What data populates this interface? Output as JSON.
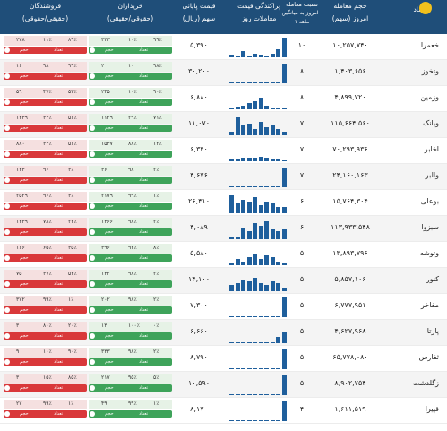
{
  "headers": {
    "symbol": "نماد",
    "volume": "حجم معامله",
    "volume_sub": "امروز (سهم)",
    "ratio": "نسبت معامله",
    "ratio_sub1": "امروز به میانگین",
    "ratio_sub2": "۱ ماهه",
    "spark": "پراکندگی قیمت",
    "spark_sub": "معاملات روز",
    "price": "قیمت پایانی",
    "price_sub": "سهم (ریال)",
    "buyers": "خریداران",
    "buyers_sub": "(حقوقی/حقیقی)",
    "sellers": "فروشندگان",
    "sellers_sub": "(حقیقی/حقوقی)"
  },
  "labels": {
    "legal": "حقوقی",
    "natural": "حقیقی",
    "count": "تعداد",
    "volume": "حجم"
  },
  "colors": {
    "header": "#1f4e79",
    "buy_bar": "#3ea35a",
    "sell_bar": "#d9383a",
    "spark": "#1f5f9c"
  },
  "rows": [
    {
      "symbol": "خعمرا",
      "volume": "۱۰,۲۵۷,۷۴۰",
      "ratio": "۱۰",
      "price": "۵,۳۹۰",
      "bars": [
        0.15,
        0.1,
        0.3,
        0.1,
        0.2,
        0.15,
        0.1,
        0.2,
        0.4,
        1.0
      ],
      "buy": {
        "a": "۳۳۳",
        "b": "۱۰٪",
        "c": "۹۹٪"
      },
      "sell": {
        "a": "۲۷۸",
        "b": "۱۱٪",
        "c": "۸۹٪"
      }
    },
    {
      "symbol": "وتخوز",
      "volume": "۱,۴۰۳,۶۵۶",
      "ratio": "۸",
      "price": "۳۰,۲۰۰",
      "bars": [
        0.1,
        0.0,
        0.0,
        0.0,
        0.0,
        0.0,
        0.0,
        0.0,
        0.0,
        1.0
      ],
      "buy": {
        "a": "۲",
        "b": "۱۰",
        "c": "۹۸٪"
      },
      "sell": {
        "a": "۱۶",
        "b": "۹۸",
        "c": "۹۹٪"
      }
    },
    {
      "symbol": "وزمین",
      "volume": "۴,۸۹۹,۷۲۰",
      "ratio": "۸",
      "price": "۶,۸۸۰",
      "bars": [
        0.1,
        0.15,
        0.2,
        0.3,
        0.4,
        0.6,
        0.2,
        0.1,
        0.1,
        0.05
      ],
      "buy": {
        "a": "۲۴۵",
        "b": "۱۰٪",
        "c": "۹۰٪"
      },
      "sell": {
        "a": "۵۹",
        "b": "۴۷٪",
        "c": "۵۳٪"
      }
    },
    {
      "symbol": "وبانک",
      "volume": "۱۱۵,۶۶۴,۵۶۰",
      "ratio": "۷",
      "price": "۱۱,۰۷۰",
      "bars": [
        0.2,
        0.9,
        0.5,
        0.6,
        0.3,
        0.7,
        0.4,
        0.5,
        0.3,
        0.2
      ],
      "buy": {
        "a": "۱۱۲۹",
        "b": "۲۹٪",
        "c": "۷۱٪"
      },
      "sell": {
        "a": "۱۳۴۹",
        "b": "۴۴٪",
        "c": "۵۶٪"
      }
    },
    {
      "symbol": "اخابر",
      "volume": "۷۰,۲۹۳,۹۳۶",
      "ratio": "۷",
      "price": "۶,۳۴۰",
      "bars": [
        0.1,
        0.15,
        0.2,
        0.2,
        0.2,
        0.25,
        0.2,
        0.15,
        0.1,
        0.05
      ],
      "buy": {
        "a": "۱۵۴۷",
        "b": "۸۸٪",
        "c": "۱۲٪"
      },
      "sell": {
        "a": "۸۸۰",
        "b": "۴۴٪",
        "c": "۵۶٪"
      }
    },
    {
      "symbol": "والبر",
      "volume": "۲۴,۱۶۰,۱۶۳",
      "ratio": "۷",
      "price": "۴,۶۷۶",
      "bars": [
        0.0,
        0.0,
        0.0,
        0.0,
        0.0,
        0.0,
        0.0,
        0.0,
        0.0,
        1.0
      ],
      "buy": {
        "a": "۳۶",
        "b": "۹۸",
        "c": "۲٪"
      },
      "sell": {
        "a": "۱۳۴",
        "b": "۹۶",
        "c": "۴٪"
      }
    },
    {
      "symbol": "بوعلی",
      "volume": "۱۵,۷۶۴,۳۰۴",
      "ratio": "۶",
      "price": "۲۶,۴۱۰",
      "bars": [
        0.9,
        0.5,
        0.7,
        0.6,
        0.8,
        0.4,
        0.6,
        0.5,
        0.3,
        0.3
      ],
      "buy": {
        "a": "۲۱۷۹",
        "b": "۹۹٪",
        "c": "۱٪"
      },
      "sell": {
        "a": "۲۵۲۹",
        "b": "۹۶٪",
        "c": "۴٪"
      }
    },
    {
      "symbol": "سبزوا",
      "volume": "۱۱۳,۹۳۳,۵۴۸",
      "ratio": "۶",
      "price": "۴,۰۸۹",
      "bars": [
        0.1,
        0.1,
        0.6,
        0.4,
        0.8,
        0.7,
        0.9,
        0.5,
        0.4,
        0.5
      ],
      "buy": {
        "a": "۱۳۶۶",
        "b": "۹۸٪",
        "c": "۲٪"
      },
      "sell": {
        "a": "۱۳۳۹",
        "b": "۷۸٪",
        "c": "۲۲٪"
      }
    },
    {
      "symbol": "وتوشه",
      "volume": "۱۳,۸۹۳,۷۹۶",
      "ratio": "۵",
      "price": "۵,۵۸۰",
      "bars": [
        0.1,
        0.3,
        0.2,
        0.4,
        0.6,
        0.3,
        0.5,
        0.4,
        0.2,
        0.1
      ],
      "buy": {
        "a": "۳۹۶",
        "b": "۹۲٪",
        "c": "۸٪"
      },
      "sell": {
        "a": "۱۶۶",
        "b": "۶۵٪",
        "c": "۳۵٪"
      }
    },
    {
      "symbol": "کنور",
      "volume": "۵,۸۵۷,۱۰۶",
      "ratio": "۵",
      "price": "۱۴,۱۰۰",
      "bars": [
        0.3,
        0.4,
        0.6,
        0.5,
        0.7,
        0.4,
        0.3,
        0.5,
        0.4,
        0.2
      ],
      "buy": {
        "a": "۱۳۲",
        "b": "۹۸٪",
        "c": "۲٪"
      },
      "sell": {
        "a": "۷۵",
        "b": "۴۷٪",
        "c": "۵۳٪"
      }
    },
    {
      "symbol": "مفاخر",
      "volume": "۶,۷۷۷,۹۵۱",
      "ratio": "۵",
      "price": "۷,۳۰۰",
      "bars": [
        0.0,
        0.0,
        0.0,
        0.0,
        0.0,
        0.0,
        0.0,
        0.0,
        0.0,
        1.0
      ],
      "buy": {
        "a": "۲۰۲",
        "b": "۹۸٪",
        "c": "۲٪"
      },
      "sell": {
        "a": "۳۷۲",
        "b": "۹۹٪",
        "c": "۱٪"
      }
    },
    {
      "symbol": "پارتا",
      "volume": "۴,۶۲۷,۹۶۸",
      "ratio": "۵",
      "price": "۶,۶۶۰",
      "bars": [
        0.0,
        0.0,
        0.0,
        0.0,
        0.0,
        0.0,
        0.0,
        0.0,
        0.3,
        0.6
      ],
      "buy": {
        "a": "۱۳",
        "b": "۱۰۰٪",
        "c": "۰٪"
      },
      "sell": {
        "a": "۳",
        "b": "۸۰٪",
        "c": "۲۰٪"
      }
    },
    {
      "symbol": "ثفارس",
      "volume": "۶۵,۷۷۸,۰۸۰",
      "ratio": "۵",
      "price": "۸,۷۹۰",
      "bars": [
        0.0,
        0.0,
        0.0,
        0.0,
        0.0,
        0.0,
        0.0,
        0.0,
        0.0,
        1.0
      ],
      "buy": {
        "a": "۳۳۳",
        "b": "۹۸٪",
        "c": "۲٪"
      },
      "sell": {
        "a": "۹",
        "b": "۱۰٪",
        "c": "۹۰٪"
      }
    },
    {
      "symbol": "زگلدشت",
      "volume": "۸,۹۰۲,۷۵۴",
      "ratio": "۵",
      "price": "۱۰,۵۹۰",
      "bars": [
        0.0,
        0.0,
        0.0,
        0.0,
        0.0,
        0.0,
        0.0,
        0.0,
        0.0,
        1.0
      ],
      "buy": {
        "a": "۲۱۷",
        "b": "۹۵٪",
        "c": "۵٪"
      },
      "sell": {
        "a": "۳",
        "b": "۱۵٪",
        "c": "۸۵٪"
      }
    },
    {
      "symbol": "قپیرا",
      "volume": "۱,۶۱۱,۵۱۹",
      "ratio": "۴",
      "price": "۸,۱۷۰",
      "bars": [
        0.0,
        0.0,
        0.0,
        0.0,
        0.0,
        0.0,
        0.0,
        0.0,
        0.0,
        1.0
      ],
      "buy": {
        "a": "۴۹",
        "b": "۹۹٪",
        "c": "۱٪"
      },
      "sell": {
        "a": "۲۷",
        "b": "۹۹٪",
        "c": "۱٪"
      }
    }
  ]
}
